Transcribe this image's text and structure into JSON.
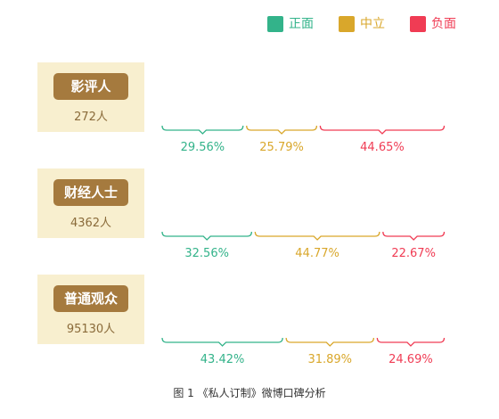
{
  "legend": [
    {
      "label": "正面",
      "color": "#33b38a"
    },
    {
      "label": "中立",
      "color": "#d9a72b"
    },
    {
      "label": "负面",
      "color": "#f03c54"
    }
  ],
  "groups": [
    {
      "name": "影评人",
      "count": "272人",
      "pct_labels": [
        "29.56%",
        "25.79%",
        "44.65%"
      ]
    },
    {
      "name": "财经人士",
      "count": "4362人",
      "pct_labels": [
        "32.56%",
        "44.77%",
        "22.67%"
      ]
    },
    {
      "name": "普通观众",
      "count": "95130人",
      "pct_labels": [
        "43.42%",
        "31.89%",
        "24.69%"
      ]
    }
  ],
  "caption": "图 1  《私人订制》微博口碑分析",
  "chart_data": {
    "type": "bar",
    "title": "",
    "categories": [
      "影评人",
      "财经人士",
      "普通观众"
    ],
    "series": [
      {
        "name": "正面",
        "values": [
          29.56,
          32.56,
          43.42
        ]
      },
      {
        "name": "中立",
        "values": [
          25.79,
          44.77,
          31.89
        ]
      },
      {
        "name": "负面",
        "values": [
          44.65,
          22.67,
          24.69
        ]
      }
    ],
    "stacked": true,
    "legend_position": "top-right"
  }
}
